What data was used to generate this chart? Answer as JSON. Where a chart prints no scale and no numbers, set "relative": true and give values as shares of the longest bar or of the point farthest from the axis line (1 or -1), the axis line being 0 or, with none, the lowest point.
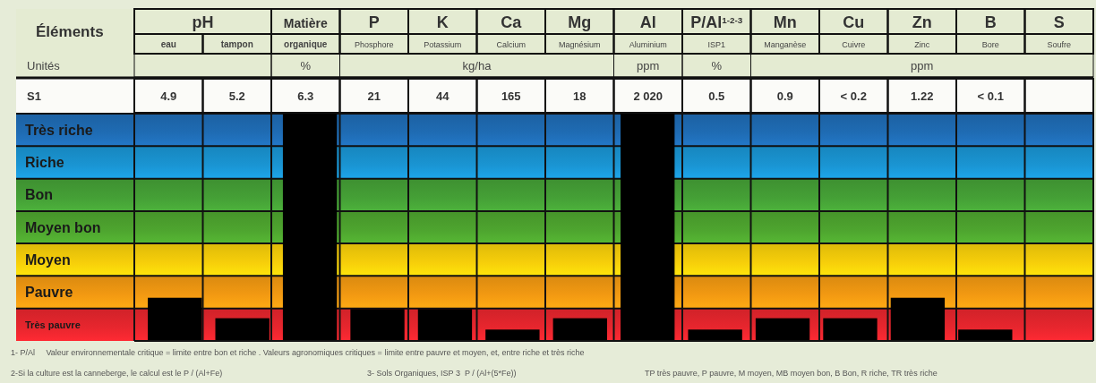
{
  "chart_data": {
    "type": "bar",
    "relative": true,
    "grid": true,
    "categories": [
      "eau",
      "tampon",
      "organique",
      "Phosphore",
      "Potassium",
      "Calcium",
      "Magnésium",
      "Aluminium",
      "ISP1",
      "Manganèse",
      "Cuivre",
      "Zinc",
      "Bore",
      "Soufre"
    ],
    "values": [
      0.19,
      0.1,
      1,
      0.14,
      0.14,
      0.05,
      0.1,
      1,
      0.05,
      0.1,
      0.1,
      0.19,
      0.05,
      null
    ],
    "color": "#000000",
    "bands": [
      {
        "axis": "y",
        "from": 0,
        "to": 0.143,
        "label": "Très pauvre",
        "color": "#e8262e"
      },
      {
        "axis": "y",
        "from": 0.143,
        "to": 0.286,
        "label": "Pauvre",
        "color": "#f39a12"
      },
      {
        "axis": "y",
        "from": 0.286,
        "to": 0.429,
        "label": "Moyen",
        "color": "#f7cf0a"
      },
      {
        "axis": "y",
        "from": 0.429,
        "to": 0.571,
        "label": "Moyen bon",
        "color": "#4ea52f"
      },
      {
        "axis": "y",
        "from": 0.571,
        "to": 0.714,
        "label": "Bon",
        "color": "#45a036"
      },
      {
        "axis": "y",
        "from": 0.714,
        "to": 0.857,
        "label": "Riche",
        "color": "#1a95d3"
      },
      {
        "axis": "y",
        "from": 0.857,
        "to": 1,
        "label": "Très riche",
        "color": "#1f6cb4"
      }
    ],
    "annotations": [
      "Éléments",
      "pH",
      "Matière",
      "P",
      "K",
      "Ca",
      "Mg",
      "Al",
      "P/Al$^{1-2-3}$",
      "Mn",
      "Cu",
      "Zn",
      "B",
      "S",
      "Unités",
      "%",
      "kg/ha",
      "ppm",
      "%",
      "ppm",
      "S1",
      "4.9",
      "5.2",
      "6.3",
      "21",
      "44",
      "165",
      "18",
      "2 020",
      "0.5",
      "0.9",
      "< 0.2",
      "1.22",
      "< 0.1",
      "1- P/Al     Valeur environnementale critique = limite entre bon et riche . Valeurs agronomiques critiques = limite entre pauvre et moyen, et, entre riche et très riche",
      "2-Si la culture est la canneberge, le calcul est le P / (Al+Fe)",
      "3- Sols Organiques, ISP 3  P / (Al+(5*Fe))",
      "TP très pauvre, P pauvre, M moyen, MB moyen bon, B Bon, R riche, TR très riche"
    ]
  }
}
